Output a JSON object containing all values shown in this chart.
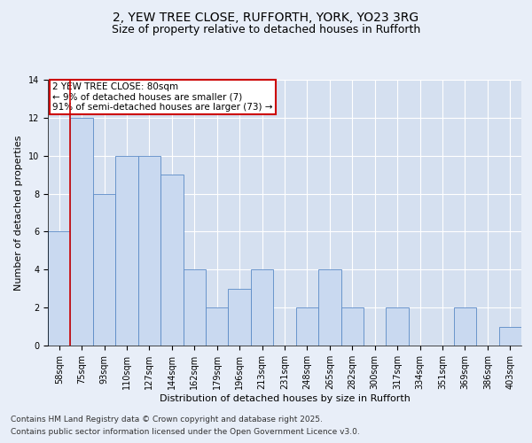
{
  "title_line1": "2, YEW TREE CLOSE, RUFFORTH, YORK, YO23 3RG",
  "title_line2": "Size of property relative to detached houses in Rufforth",
  "xlabel": "Distribution of detached houses by size in Rufforth",
  "ylabel": "Number of detached properties",
  "categories": [
    "58sqm",
    "75sqm",
    "93sqm",
    "110sqm",
    "127sqm",
    "144sqm",
    "162sqm",
    "179sqm",
    "196sqm",
    "213sqm",
    "231sqm",
    "248sqm",
    "265sqm",
    "282sqm",
    "300sqm",
    "317sqm",
    "334sqm",
    "351sqm",
    "369sqm",
    "386sqm",
    "403sqm"
  ],
  "values": [
    6,
    12,
    8,
    10,
    10,
    9,
    4,
    2,
    3,
    4,
    0,
    2,
    4,
    2,
    0,
    2,
    0,
    0,
    2,
    0,
    1
  ],
  "bar_color": "#c9d9f0",
  "bar_edge_color": "#5a8ac6",
  "property_label": "2 YEW TREE CLOSE: 80sqm",
  "annotation_line2": "← 9% of detached houses are smaller (7)",
  "annotation_line3": "91% of semi-detached houses are larger (73) →",
  "vline_color": "#cc0000",
  "vline_x_index": 1,
  "annotation_box_color": "#cc0000",
  "ylim": [
    0,
    14
  ],
  "yticks": [
    0,
    2,
    4,
    6,
    8,
    10,
    12,
    14
  ],
  "footer_line1": "Contains HM Land Registry data © Crown copyright and database right 2025.",
  "footer_line2": "Contains public sector information licensed under the Open Government Licence v3.0.",
  "background_color": "#e8eef8",
  "plot_background": "#d5e0f0",
  "grid_color": "#ffffff",
  "title_fontsize": 10,
  "subtitle_fontsize": 9,
  "axis_label_fontsize": 8,
  "tick_fontsize": 7,
  "footer_fontsize": 6.5,
  "annotation_fontsize": 7.5
}
